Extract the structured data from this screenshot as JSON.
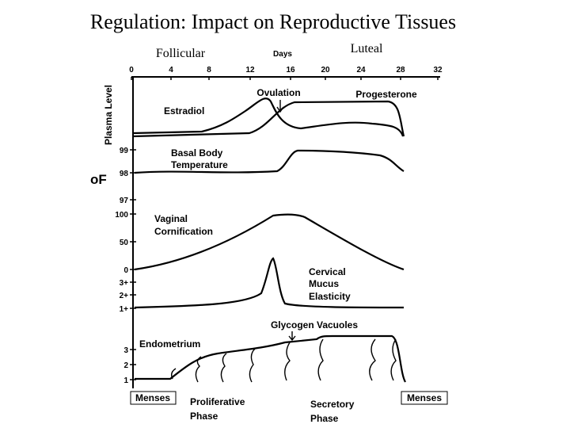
{
  "header": {
    "title": "Regulation: Impact on Reproductive Tissues",
    "follicular": "Follicular",
    "luteal": "Luteal"
  },
  "axis": {
    "label": "Days",
    "ticks": [
      "0",
      "4",
      "8",
      "12",
      "16",
      "20",
      "24",
      "28",
      "32"
    ]
  },
  "panels": [
    {
      "axis_label": "Plasma Level",
      "labels": [
        "Estradiol",
        "Ovulation",
        "Progesterone"
      ]
    },
    {
      "unit": "oF",
      "ticks": [
        "99",
        "98",
        "97"
      ],
      "labels": [
        "Basal Body",
        "Temperature"
      ]
    },
    {
      "ticks": [
        "100",
        "50",
        "0"
      ],
      "labels": [
        "Vaginal",
        "Cornification"
      ]
    },
    {
      "ticks": [
        "3+",
        "2+",
        "1+"
      ],
      "labels": [
        "Cervical",
        "Mucus",
        "Elasticity"
      ]
    },
    {
      "ticks": [
        "3",
        "2",
        "1"
      ],
      "labels": [
        "Endometrium",
        "Glycogen Vacuoles"
      ]
    }
  ],
  "phases": [
    "Menses",
    "Proliferative",
    "Phase",
    "Secretory",
    "Phase",
    "Menses"
  ]
}
